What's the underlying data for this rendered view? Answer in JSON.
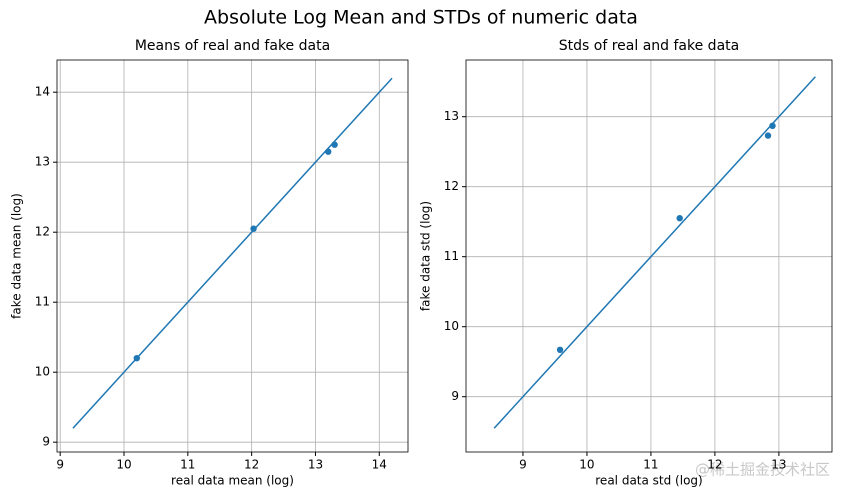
{
  "title": "Absolute Log Mean and STDs of numeric data",
  "watermark": "@稀土掘金技术社区",
  "chart_data": [
    {
      "type": "scatter",
      "title": "Means of real and fake data",
      "xlabel": "real data mean (log)",
      "ylabel": "fake data mean (log)",
      "x": [
        10.2,
        12.03,
        13.2,
        13.3
      ],
      "values": [
        10.2,
        12.05,
        13.15,
        13.25
      ],
      "line_x": [
        9.2,
        14.2
      ],
      "line_values": [
        9.2,
        14.2
      ],
      "color": "#1f77b4",
      "xlim": [
        8.95,
        14.45
      ],
      "ylim": [
        8.86,
        14.46
      ],
      "xticks": [
        9,
        10,
        11,
        12,
        13,
        14
      ],
      "yticks": [
        9,
        10,
        11,
        12,
        13,
        14
      ],
      "grid": true
    },
    {
      "type": "scatter",
      "title": "Stds of real and fake data",
      "xlabel": "real data std (log)",
      "ylabel": "fake data std (log)",
      "x": [
        9.58,
        11.45,
        12.83,
        12.9
      ],
      "values": [
        9.67,
        11.55,
        12.73,
        12.87
      ],
      "line_x": [
        8.55,
        13.57
      ],
      "line_values": [
        8.55,
        13.57
      ],
      "color": "#1f77b4",
      "xlim": [
        8.11,
        13.83
      ],
      "ylim": [
        8.21,
        13.81
      ],
      "xticks": [
        9,
        10,
        11,
        12,
        13
      ],
      "yticks": [
        9,
        10,
        11,
        12,
        13
      ],
      "grid": true
    }
  ]
}
